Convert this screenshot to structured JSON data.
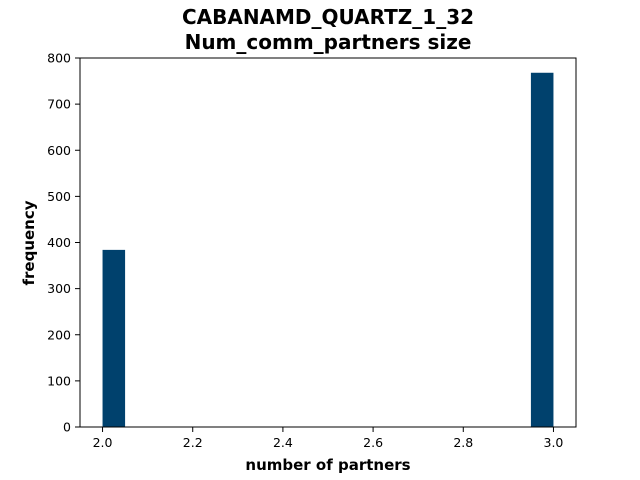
{
  "chart_data": {
    "type": "bar",
    "title_line1": "CABANAMD_QUARTZ_1_32",
    "title_line2": "Num_comm_partners size",
    "xlabel": "number of partners",
    "ylabel": "frequency",
    "xlim": [
      1.95,
      3.05
    ],
    "ylim": [
      0,
      800
    ],
    "xticks": [
      "2.0",
      "2.2",
      "2.4",
      "2.6",
      "2.8",
      "3.0"
    ],
    "yticks": [
      "0",
      "100",
      "200",
      "300",
      "400",
      "500",
      "600",
      "700",
      "800"
    ],
    "bin_width": 0.05,
    "bars": [
      {
        "x_start": 2.0,
        "x_end": 2.05,
        "value": 384
      },
      {
        "x_start": 2.95,
        "x_end": 3.0,
        "value": 768
      }
    ],
    "bar_color": "#00416d",
    "grid": false
  }
}
